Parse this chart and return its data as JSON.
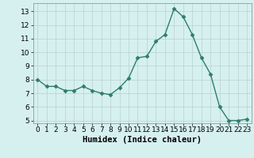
{
  "x": [
    0,
    1,
    2,
    3,
    4,
    5,
    6,
    7,
    8,
    9,
    10,
    11,
    12,
    13,
    14,
    15,
    16,
    17,
    18,
    19,
    20,
    21,
    22,
    23
  ],
  "y": [
    8.0,
    7.5,
    7.5,
    7.2,
    7.2,
    7.5,
    7.2,
    7.0,
    6.9,
    7.4,
    8.1,
    9.6,
    9.7,
    10.8,
    11.3,
    13.2,
    12.6,
    11.3,
    9.6,
    8.4,
    6.0,
    5.0,
    5.0,
    5.1
  ],
  "line_color": "#2e7d6e",
  "marker": "D",
  "marker_size": 2.5,
  "bg_color": "#d6f0f0",
  "grid_color": "#b8d0d0",
  "xlabel": "Humidex (Indice chaleur)",
  "xlim": [
    -0.5,
    23.5
  ],
  "ylim": [
    4.8,
    13.6
  ],
  "yticks": [
    5,
    6,
    7,
    8,
    9,
    10,
    11,
    12,
    13
  ],
  "xticks": [
    0,
    1,
    2,
    3,
    4,
    5,
    6,
    7,
    8,
    9,
    10,
    11,
    12,
    13,
    14,
    15,
    16,
    17,
    18,
    19,
    20,
    21,
    22,
    23
  ],
  "xlabel_fontsize": 7.5,
  "tick_fontsize": 6.5,
  "line_width": 1.0
}
